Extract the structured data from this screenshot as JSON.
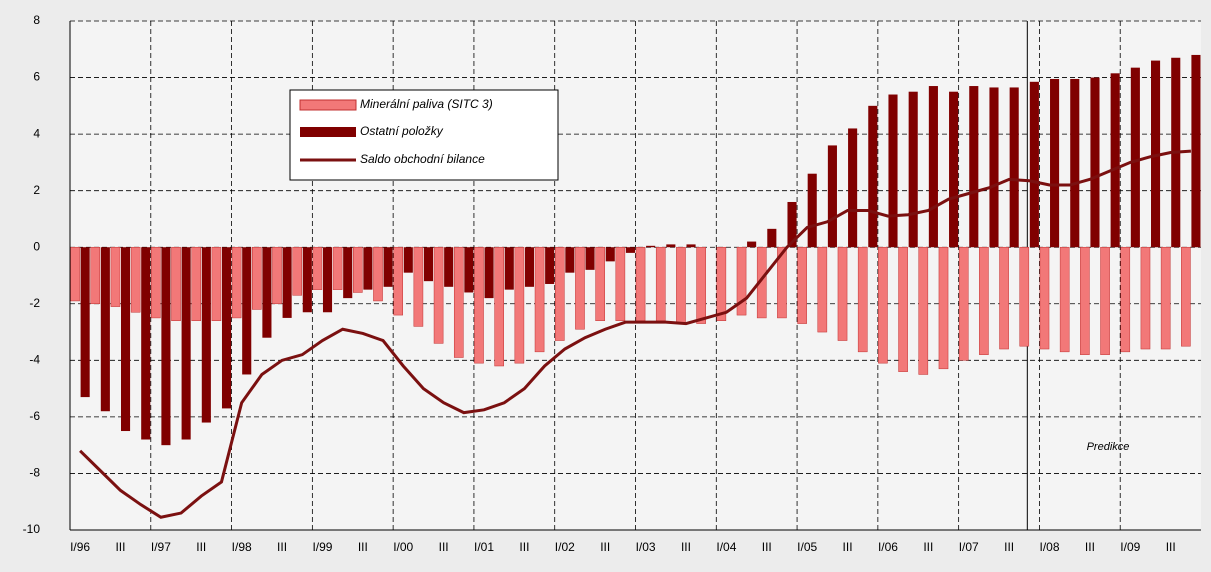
{
  "chart_data": {
    "type": "bar-line",
    "categories": [
      "I/96",
      null,
      "III",
      null,
      "I/97",
      null,
      "III",
      null,
      "I/98",
      null,
      "III",
      null,
      "I/99",
      null,
      "III",
      null,
      "I/00",
      null,
      "III",
      null,
      "I/01",
      null,
      "III",
      null,
      "I/02",
      null,
      "III",
      null,
      "I/03",
      null,
      "III",
      null,
      "I/04",
      null,
      "III",
      null,
      "I/05",
      null,
      "III",
      null,
      "I/06",
      null,
      "III",
      null,
      "I/07",
      null,
      "III",
      null,
      "I/08",
      null,
      "III",
      null,
      "I/09",
      null,
      "III",
      null
    ],
    "series": [
      {
        "name": "Minerální paliva (SITC 3)",
        "type": "bar",
        "color": "#f27878",
        "values": [
          -1.9,
          -2.0,
          -2.1,
          -2.3,
          -2.5,
          -2.6,
          -2.6,
          -2.6,
          -2.5,
          -2.2,
          -2.0,
          -1.7,
          -1.5,
          -1.5,
          -1.6,
          -1.9,
          -2.4,
          -2.8,
          -3.4,
          -3.9,
          -4.1,
          -4.2,
          -4.1,
          -3.7,
          -3.3,
          -2.9,
          -2.6,
          -2.6,
          -2.6,
          -2.6,
          -2.7,
          -2.7,
          -2.6,
          -2.4,
          -2.5,
          -2.5,
          -2.7,
          -3.0,
          -3.3,
          -3.7,
          -4.1,
          -4.4,
          -4.5,
          -4.3,
          -4.0,
          -3.8,
          -3.6,
          -3.5,
          -3.6,
          -3.7,
          -3.8,
          -3.8,
          -3.7,
          -3.6,
          -3.6,
          -3.5
        ]
      },
      {
        "name": "Ostatní položky",
        "type": "bar",
        "color": "#800000",
        "values": [
          -5.3,
          -5.8,
          -6.5,
          -6.8,
          -7.0,
          -6.8,
          -6.2,
          -5.7,
          -4.5,
          -3.2,
          -2.5,
          -2.3,
          -2.3,
          -1.8,
          -1.5,
          -1.4,
          -0.9,
          -1.2,
          -1.4,
          -1.6,
          -1.8,
          -1.5,
          -1.4,
          -1.3,
          -0.9,
          -0.8,
          -0.5,
          -0.2,
          0.05,
          0.1,
          0.1,
          0.0,
          0.0,
          0.2,
          0.65,
          1.6,
          2.6,
          3.6,
          4.2,
          5.0,
          5.4,
          5.5,
          5.7,
          5.5,
          5.7,
          5.65,
          5.65,
          5.85,
          5.95,
          5.95,
          6.0,
          6.15,
          6.35,
          6.6,
          6.7,
          6.8
        ]
      },
      {
        "name": "Saldo obchodní bilance",
        "type": "line",
        "color": "#7b1010",
        "values": [
          -7.2,
          -7.9,
          -8.6,
          -9.1,
          -9.55,
          -9.4,
          -8.8,
          -8.3,
          -5.5,
          -4.5,
          -4.0,
          -3.8,
          -3.3,
          -2.9,
          -3.05,
          -3.3,
          -4.2,
          -5.0,
          -5.5,
          -5.85,
          -5.75,
          -5.5,
          -5.0,
          -4.2,
          -3.6,
          -3.2,
          -2.9,
          -2.65,
          -2.65,
          -2.65,
          -2.7,
          -2.5,
          -2.3,
          -1.8,
          -0.9,
          0.0,
          0.7,
          0.9,
          1.3,
          1.3,
          1.1,
          1.15,
          1.3,
          1.7,
          1.9,
          2.1,
          2.4,
          2.35,
          2.2,
          2.2,
          2.4,
          2.7,
          3.0,
          3.2,
          3.35,
          3.4
        ]
      }
    ],
    "annotation": "Predikce",
    "ylim": [
      -10,
      8
    ],
    "yticks": [
      -10,
      -8,
      -6,
      -4,
      -2,
      0,
      2,
      4,
      6,
      8
    ],
    "grid": true
  }
}
